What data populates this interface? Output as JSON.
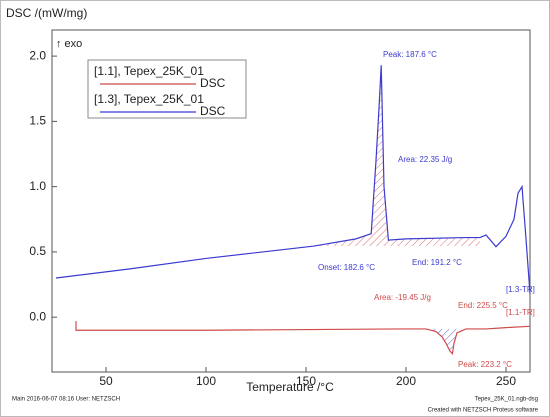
{
  "chart_data": {
    "type": "line",
    "y_label": "DSC /(mW/mg)",
    "y_sublabel": "↑ exo",
    "x_label": "Temperature /°C",
    "xlim": [
      23,
      262
    ],
    "xticks": [
      50,
      100,
      150,
      200,
      250
    ],
    "ylim": [
      -0.42,
      2.2
    ],
    "yticks": [
      {
        "value": 0,
        "label": "0.0"
      },
      0.5,
      {
        "value": 1,
        "label": "1.0"
      },
      1.5,
      {
        "value": 2,
        "label": "2.0"
      }
    ],
    "grid": false,
    "legend": "upper left",
    "series": [
      {
        "name": "[1.1], Tepex_25K_01",
        "quantity": "DSC",
        "color": "#d04a4a",
        "x": [
          35,
          35,
          100,
          200,
          210,
          215,
          218,
          220,
          222,
          223.2,
          224,
          225.5,
          230,
          240,
          250,
          262
        ],
        "values": [
          -0.03,
          -0.1,
          -0.1,
          -0.09,
          -0.09,
          -0.11,
          -0.15,
          -0.2,
          -0.26,
          -0.28,
          -0.2,
          -0.12,
          -0.09,
          -0.09,
          -0.08,
          -0.07
        ]
      },
      {
        "name": "[1.3], Tepex_25K_01",
        "quantity": "DSC",
        "color": "#3a3ad0",
        "x": [
          25,
          62,
          100,
          154,
          175,
          182.6,
          185,
          186.5,
          187.6,
          189,
          191.2,
          200,
          230,
          237,
          240,
          245,
          250,
          254,
          256,
          258,
          260,
          262
        ],
        "values": [
          0.3,
          0.37,
          0.45,
          0.545,
          0.6,
          0.64,
          1.2,
          1.6,
          1.93,
          1.0,
          0.59,
          0.6,
          0.61,
          0.61,
          0.63,
          0.54,
          0.62,
          0.75,
          0.95,
          1.0,
          0.6,
          0.18
        ]
      }
    ],
    "annotations": [
      {
        "text": "Peak: 187.6 °C",
        "series": 1
      },
      {
        "text": "Area: 22.35 J/g",
        "series": 1
      },
      {
        "text": "Onset: 182.6 °C",
        "series": 1
      },
      {
        "text": "End: 191.2 °C",
        "series": 1
      },
      {
        "text": "[1.3-TR]",
        "series": 1
      },
      {
        "text": "[1.1-TR]",
        "series": 0
      },
      {
        "text": "Area: -19.45 J/g",
        "series": 0
      },
      {
        "text": "End: 225.5 °C",
        "series": 0
      },
      {
        "text": "Peak: 223.2 °C",
        "series": 0
      }
    ],
    "footer_left": "Main   2016-06-07 08:16   User: NETZSCH",
    "footer_right": "Tepex_25K_01.ngb-dsg",
    "footer_credit": "Created with NETZSCH Proteus software"
  }
}
